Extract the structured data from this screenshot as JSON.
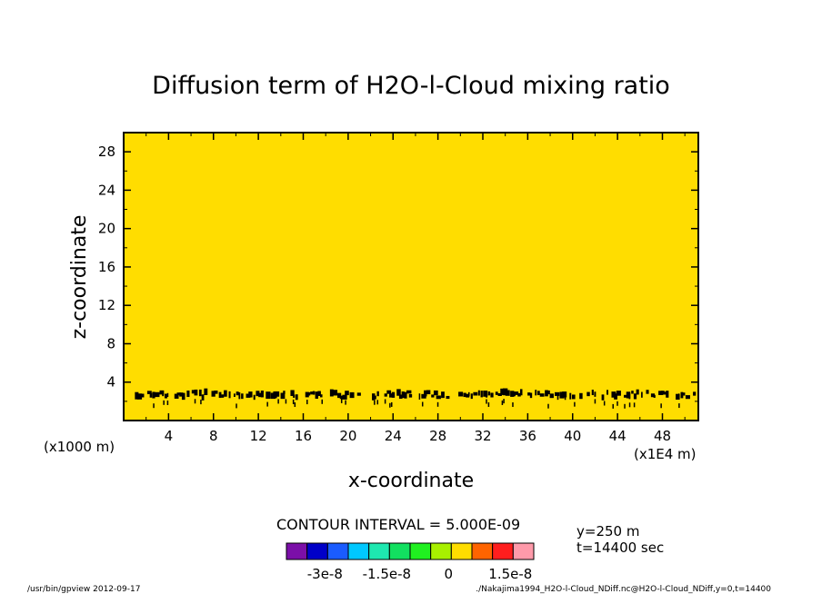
{
  "chart_data": {
    "type": "heatmap",
    "title": "Diffusion term of H2O-l-Cloud mixing ratio",
    "xlabel": "x-coordinate",
    "ylabel": "z-coordinate",
    "x_ticks": [
      4,
      8,
      12,
      16,
      20,
      24,
      28,
      32,
      36,
      40,
      44,
      48
    ],
    "y_ticks": [
      4,
      8,
      12,
      16,
      20,
      24,
      28
    ],
    "x_range": [
      0,
      51.2
    ],
    "y_range": [
      0,
      30
    ],
    "y_unit": "(x1000 m)",
    "x_unit": "(x1E4 m)",
    "background_value_color": "#ffdd00",
    "contour_interval_label": "CONTOUR INTERVAL = 5.000E-09",
    "info": {
      "y_pos": "y=250 m",
      "time": "t=14400 sec"
    },
    "colorbar": {
      "colors": [
        "#7b0fa8",
        "#0000c8",
        "#1a5cff",
        "#00c8ff",
        "#1ee8b0",
        "#12e060",
        "#20f020",
        "#a8f000",
        "#ffdd00",
        "#ff6400",
        "#ff1e1e",
        "#ff9aaa"
      ],
      "tick_labels": [
        "-3e-8",
        "-1.5e-8",
        "0",
        "1.5e-8"
      ]
    },
    "noise_band": {
      "z_center": 2.7,
      "z_spread": 0.6,
      "z_low": 1.4
    }
  },
  "footer": {
    "left": "/usr/bin/gpview  2012-09-17",
    "right": "./Nakajima1994_H2O-l-Cloud_NDiff.nc@H2O-l-Cloud_NDiff,y=0,t=14400"
  }
}
